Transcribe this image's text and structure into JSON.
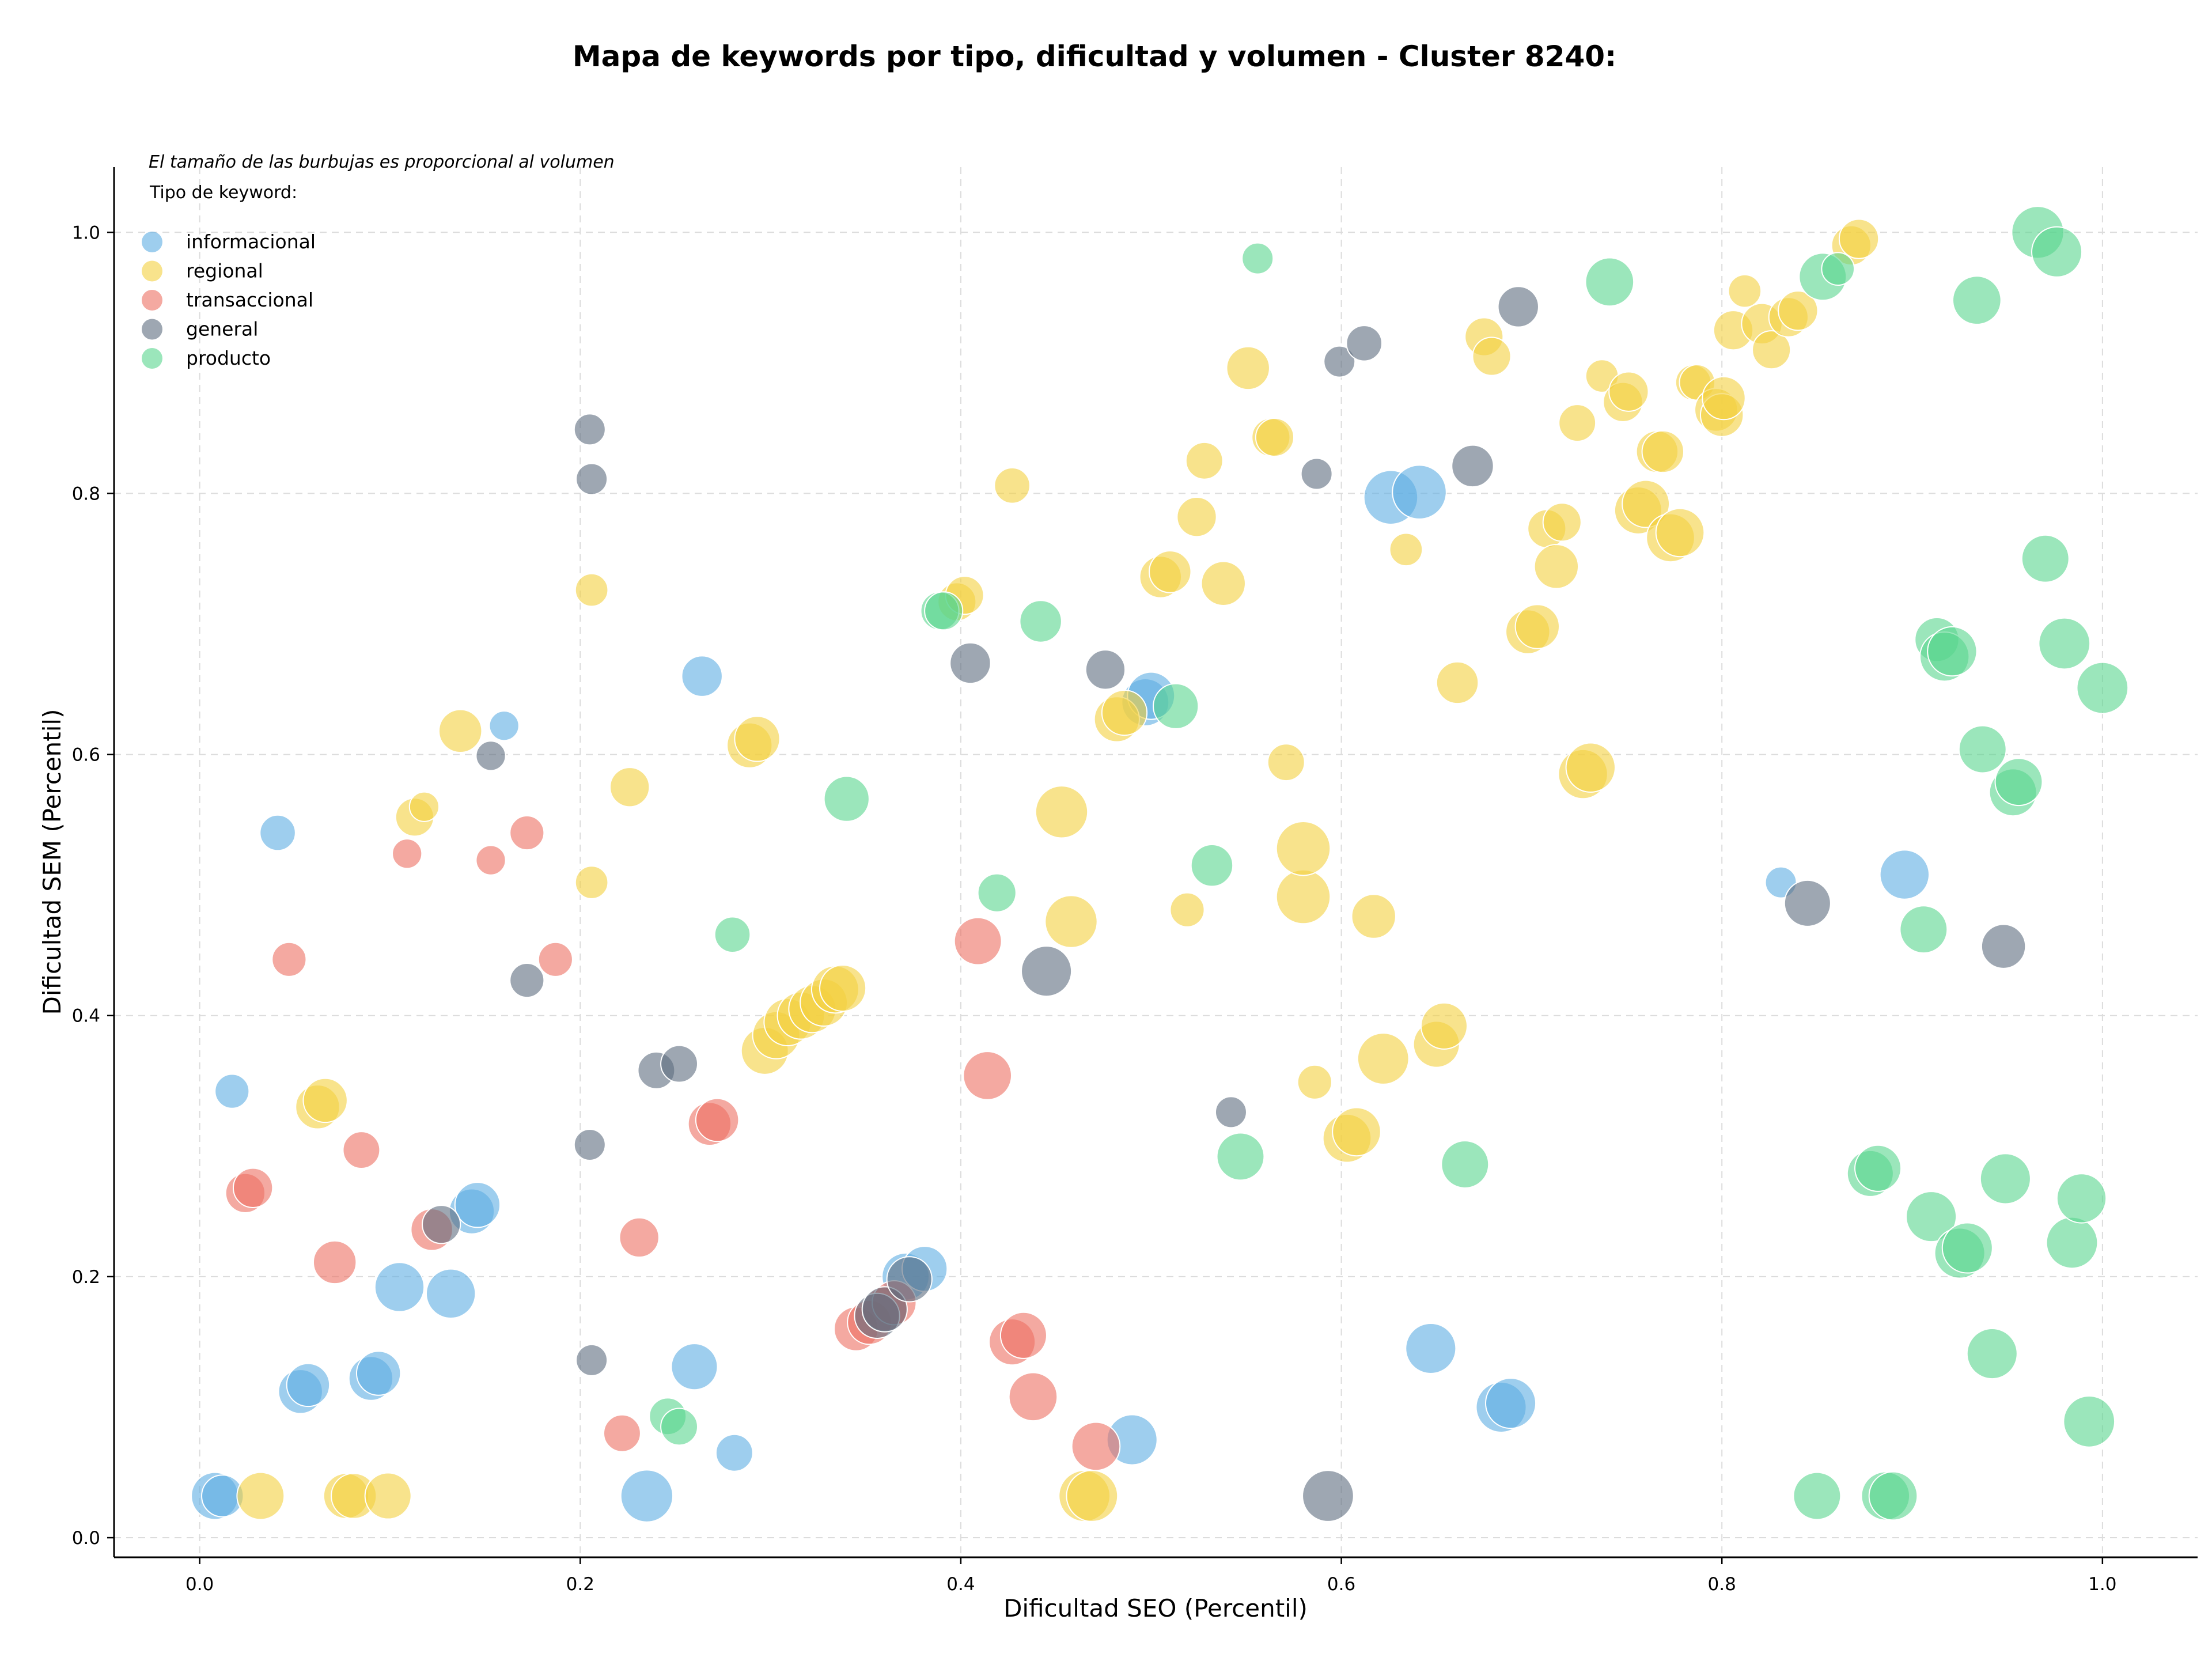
{
  "chart_data": {
    "type": "scatter",
    "title": "Mapa de keywords por tipo, dificultad y volumen - Cluster 8240:",
    "xlabel": "Dificultad SEO (Percentil)",
    "ylabel": "Dificultad SEM (Percentil)",
    "xlim": [
      -0.045,
      1.05
    ],
    "ylim": [
      -0.015,
      1.05
    ],
    "x_ticks": [
      "0.0",
      "0.2",
      "0.4",
      "0.6",
      "0.8",
      "1.0"
    ],
    "y_ticks": [
      "0.0",
      "0.2",
      "0.4",
      "0.6",
      "0.8",
      "1.0"
    ],
    "grid": true,
    "legend_placement": "top-left",
    "size_note": "El tamaño de las burbujas es proporcional al volumen",
    "legend_title": "Tipo de keyword:",
    "series": [
      {
        "name": "informacional",
        "color": "#5dade2",
        "points": [
          [
            0.008,
            0.032,
            2.3
          ],
          [
            0.012,
            0.032,
            1.8
          ],
          [
            0.017,
            0.342,
            1.2
          ],
          [
            0.041,
            0.54,
            1.3
          ],
          [
            0.053,
            0.112,
            2.0
          ],
          [
            0.057,
            0.117,
            1.9
          ],
          [
            0.09,
            0.122,
            2.0
          ],
          [
            0.094,
            0.126,
            2.0
          ],
          [
            0.105,
            0.192,
            2.5
          ],
          [
            0.132,
            0.187,
            2.5
          ],
          [
            0.143,
            0.25,
            2.1
          ],
          [
            0.146,
            0.255,
            2.1
          ],
          [
            0.16,
            0.622,
            0.9
          ],
          [
            0.235,
            0.032,
            2.8
          ],
          [
            0.26,
            0.131,
            2.2
          ],
          [
            0.264,
            0.66,
            1.7
          ],
          [
            0.281,
            0.065,
            1.4
          ],
          [
            0.371,
            0.2,
            2.3
          ],
          [
            0.381,
            0.206,
            2.1
          ],
          [
            0.49,
            0.075,
            2.6
          ],
          [
            0.497,
            0.64,
            2.3
          ],
          [
            0.5,
            0.645,
            2.3
          ],
          [
            0.626,
            0.797,
            3.0
          ],
          [
            0.641,
            0.801,
            3.0
          ],
          [
            0.647,
            0.145,
            2.6
          ],
          [
            0.684,
            0.1,
            2.6
          ],
          [
            0.689,
            0.103,
            2.6
          ],
          [
            0.831,
            0.502,
            1.0
          ],
          [
            0.896,
            0.508,
            2.5
          ]
        ]
      },
      {
        "name": "regional",
        "color": "#f4d03f",
        "points": [
          [
            0.032,
            0.032,
            2.3
          ],
          [
            0.062,
            0.33,
            2.0
          ],
          [
            0.066,
            0.335,
            2.0
          ],
          [
            0.077,
            0.032,
            2.1
          ],
          [
            0.081,
            0.032,
            2.1
          ],
          [
            0.099,
            0.032,
            2.2
          ],
          [
            0.113,
            0.552,
            1.5
          ],
          [
            0.118,
            0.56,
            0.9
          ],
          [
            0.137,
            0.618,
            1.9
          ],
          [
            0.206,
            0.726,
            1.1
          ],
          [
            0.206,
            0.502,
            1.1
          ],
          [
            0.226,
            0.575,
            1.6
          ],
          [
            0.289,
            0.607,
            2.1
          ],
          [
            0.293,
            0.612,
            2.1
          ],
          [
            0.297,
            0.373,
            2.3
          ],
          [
            0.303,
            0.385,
            2.3
          ],
          [
            0.309,
            0.395,
            2.3
          ],
          [
            0.316,
            0.4,
            2.3
          ],
          [
            0.322,
            0.405,
            2.3
          ],
          [
            0.328,
            0.41,
            2.3
          ],
          [
            0.334,
            0.42,
            2.3
          ],
          [
            0.338,
            0.421,
            2.2
          ],
          [
            0.398,
            0.717,
            1.5
          ],
          [
            0.402,
            0.722,
            1.5
          ],
          [
            0.427,
            0.806,
            1.3
          ],
          [
            0.453,
            0.556,
            2.8
          ],
          [
            0.458,
            0.472,
            2.8
          ],
          [
            0.465,
            0.032,
            2.7
          ],
          [
            0.469,
            0.032,
            2.7
          ],
          [
            0.482,
            0.627,
            2.1
          ],
          [
            0.486,
            0.632,
            2.1
          ],
          [
            0.505,
            0.736,
            1.8
          ],
          [
            0.51,
            0.74,
            1.8
          ],
          [
            0.519,
            0.481,
            1.2
          ],
          [
            0.524,
            0.782,
            1.6
          ],
          [
            0.528,
            0.825,
            1.4
          ],
          [
            0.538,
            0.731,
            2.0
          ],
          [
            0.551,
            0.896,
            1.9
          ],
          [
            0.563,
            0.843,
            1.5
          ],
          [
            0.565,
            0.843,
            1.5
          ],
          [
            0.571,
            0.594,
            1.4
          ],
          [
            0.58,
            0.491,
            3.0
          ],
          [
            0.58,
            0.528,
            3.0
          ],
          [
            0.586,
            0.349,
            1.2
          ],
          [
            0.603,
            0.306,
            2.4
          ],
          [
            0.608,
            0.311,
            2.4
          ],
          [
            0.617,
            0.476,
            2.0
          ],
          [
            0.622,
            0.367,
            2.7
          ],
          [
            0.634,
            0.757,
            1.1
          ],
          [
            0.65,
            0.378,
            2.2
          ],
          [
            0.654,
            0.392,
            2.2
          ],
          [
            0.661,
            0.655,
            1.8
          ],
          [
            0.675,
            0.92,
            1.5
          ],
          [
            0.679,
            0.905,
            1.5
          ],
          [
            0.698,
            0.694,
            2.0
          ],
          [
            0.703,
            0.698,
            2.0
          ],
          [
            0.708,
            0.773,
            1.5
          ],
          [
            0.713,
            0.744,
            2.0
          ],
          [
            0.716,
            0.778,
            1.5
          ],
          [
            0.724,
            0.854,
            1.4
          ],
          [
            0.727,
            0.585,
            2.5
          ],
          [
            0.731,
            0.59,
            2.5
          ],
          [
            0.737,
            0.89,
            1.1
          ],
          [
            0.748,
            0.87,
            1.6
          ],
          [
            0.751,
            0.878,
            1.6
          ],
          [
            0.756,
            0.787,
            2.3
          ],
          [
            0.76,
            0.792,
            2.3
          ],
          [
            0.766,
            0.832,
            1.8
          ],
          [
            0.769,
            0.832,
            1.8
          ],
          [
            0.773,
            0.766,
            2.4
          ],
          [
            0.778,
            0.77,
            2.4
          ],
          [
            0.785,
            0.885,
            1.3
          ],
          [
            0.787,
            0.885,
            1.3
          ],
          [
            0.797,
            0.864,
            1.9
          ],
          [
            0.8,
            0.86,
            1.9
          ],
          [
            0.801,
            0.873,
            1.9
          ],
          [
            0.806,
            0.925,
            1.6
          ],
          [
            0.812,
            0.955,
            1.1
          ],
          [
            0.821,
            0.93,
            1.7
          ],
          [
            0.826,
            0.91,
            1.5
          ],
          [
            0.835,
            0.935,
            1.6
          ],
          [
            0.84,
            0.94,
            1.6
          ],
          [
            0.868,
            0.99,
            1.6
          ],
          [
            0.872,
            0.995,
            1.6
          ]
        ]
      },
      {
        "name": "transaccional",
        "color": "#ec7063",
        "points": [
          [
            0.024,
            0.264,
            1.6
          ],
          [
            0.028,
            0.268,
            1.6
          ],
          [
            0.047,
            0.443,
            1.2
          ],
          [
            0.071,
            0.211,
            1.9
          ],
          [
            0.085,
            0.297,
            1.4
          ],
          [
            0.109,
            0.524,
            0.9
          ],
          [
            0.122,
            0.236,
            1.8
          ],
          [
            0.153,
            0.519,
            0.9
          ],
          [
            0.172,
            0.54,
            1.2
          ],
          [
            0.187,
            0.443,
            1.2
          ],
          [
            0.222,
            0.08,
            1.4
          ],
          [
            0.231,
            0.23,
            1.6
          ],
          [
            0.268,
            0.317,
            1.9
          ],
          [
            0.272,
            0.32,
            1.9
          ],
          [
            0.345,
            0.16,
            2.0
          ],
          [
            0.352,
            0.165,
            2.0
          ],
          [
            0.36,
            0.175,
            2.0
          ],
          [
            0.365,
            0.18,
            2.0
          ],
          [
            0.409,
            0.457,
            2.3
          ],
          [
            0.414,
            0.354,
            2.4
          ],
          [
            0.427,
            0.15,
            2.2
          ],
          [
            0.433,
            0.155,
            2.2
          ],
          [
            0.438,
            0.108,
            2.4
          ],
          [
            0.471,
            0.07,
            2.4
          ]
        ]
      },
      {
        "name": "general",
        "color": "#5d6d7e",
        "points": [
          [
            0.127,
            0.24,
            1.5
          ],
          [
            0.153,
            0.599,
            0.9
          ],
          [
            0.172,
            0.427,
            1.2
          ],
          [
            0.205,
            0.849,
            1.0
          ],
          [
            0.206,
            0.811,
            1.0
          ],
          [
            0.205,
            0.301,
            1.0
          ],
          [
            0.206,
            0.136,
            1.0
          ],
          [
            0.24,
            0.358,
            1.4
          ],
          [
            0.252,
            0.363,
            1.4
          ],
          [
            0.356,
            0.17,
            2.1
          ],
          [
            0.36,
            0.175,
            2.1
          ],
          [
            0.373,
            0.198,
            2.1
          ],
          [
            0.405,
            0.67,
            1.7
          ],
          [
            0.445,
            0.434,
            2.6
          ],
          [
            0.476,
            0.665,
            1.6
          ],
          [
            0.542,
            0.326,
            1.0
          ],
          [
            0.587,
            0.815,
            1.0
          ],
          [
            0.593,
            0.032,
            2.7
          ],
          [
            0.599,
            0.901,
            1.0
          ],
          [
            0.612,
            0.915,
            1.3
          ],
          [
            0.669,
            0.821,
            1.8
          ],
          [
            0.693,
            0.943,
            1.7
          ],
          [
            0.845,
            0.486,
            2.2
          ],
          [
            0.948,
            0.453,
            2.0
          ]
        ]
      },
      {
        "name": "producto",
        "color": "#58d68d",
        "points": [
          [
            0.246,
            0.093,
            1.4
          ],
          [
            0.252,
            0.085,
            1.4
          ],
          [
            0.28,
            0.462,
            1.3
          ],
          [
            0.34,
            0.566,
            2.1
          ],
          [
            0.389,
            0.71,
            1.5
          ],
          [
            0.391,
            0.71,
            1.5
          ],
          [
            0.419,
            0.494,
            1.5
          ],
          [
            0.442,
            0.702,
            1.8
          ],
          [
            0.513,
            0.637,
            2.1
          ],
          [
            0.532,
            0.515,
            1.8
          ],
          [
            0.547,
            0.292,
            2.3
          ],
          [
            0.556,
            0.98,
            1.0
          ],
          [
            0.665,
            0.286,
            2.3
          ],
          [
            0.741,
            0.962,
            2.4
          ],
          [
            0.85,
            0.032,
            2.3
          ],
          [
            0.853,
            0.966,
            2.3
          ],
          [
            0.861,
            0.972,
            1.1
          ],
          [
            0.878,
            0.279,
            2.2
          ],
          [
            0.882,
            0.283,
            2.2
          ],
          [
            0.886,
            0.032,
            2.4
          ],
          [
            0.89,
            0.032,
            2.4
          ],
          [
            0.906,
            0.466,
            2.3
          ],
          [
            0.91,
            0.246,
            2.6
          ],
          [
            0.913,
            0.688,
            2.0
          ],
          [
            0.917,
            0.675,
            2.5
          ],
          [
            0.921,
            0.679,
            2.5
          ],
          [
            0.925,
            0.218,
            2.6
          ],
          [
            0.929,
            0.222,
            2.6
          ],
          [
            0.934,
            0.948,
            2.4
          ],
          [
            0.937,
            0.604,
            2.3
          ],
          [
            0.942,
            0.141,
            2.6
          ],
          [
            0.949,
            0.275,
            2.6
          ],
          [
            0.953,
            0.571,
            2.3
          ],
          [
            0.956,
            0.579,
            2.3
          ],
          [
            0.966,
            1.0,
            2.8
          ],
          [
            0.97,
            0.75,
            2.3
          ],
          [
            0.976,
            0.985,
            2.6
          ],
          [
            0.98,
            0.685,
            2.7
          ],
          [
            0.984,
            0.226,
            2.7
          ],
          [
            0.989,
            0.26,
            2.5
          ],
          [
            0.993,
            0.089,
            2.7
          ],
          [
            1.0,
            0.651,
            2.7
          ]
        ]
      }
    ]
  }
}
